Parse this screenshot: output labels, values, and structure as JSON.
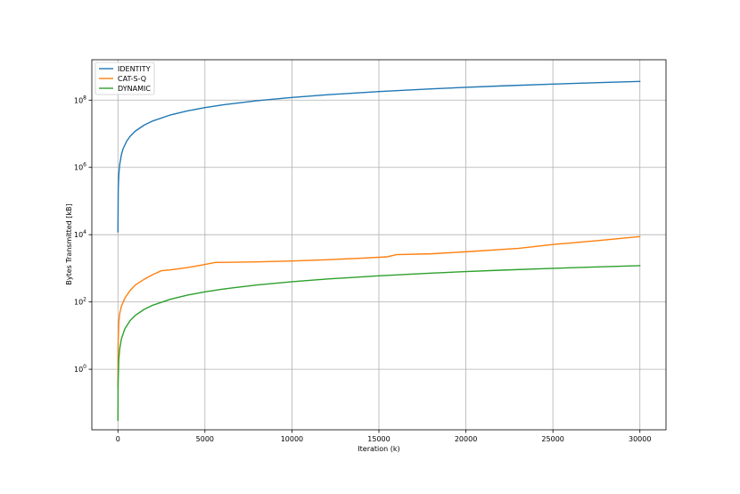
{
  "chart_data": {
    "type": "line",
    "title": "",
    "xlabel": "Iteration (k)",
    "ylabel": "Bytes Transmitted [kB]",
    "xlim": [
      -1500,
      31500
    ],
    "ylim_log10": [
      -1.8,
      9.2
    ],
    "yscale": "log",
    "grid": true,
    "legend_position": "top-left",
    "x_ticks": [
      0,
      5000,
      10000,
      15000,
      20000,
      25000,
      30000
    ],
    "x_tick_labels": [
      "0",
      "5000",
      "10000",
      "15000",
      "20000",
      "25000",
      "30000"
    ],
    "y_ticks_log10": [
      0,
      2,
      4,
      6,
      8
    ],
    "y_tick_labels": [
      {
        "base": "10",
        "exp": "0"
      },
      {
        "base": "10",
        "exp": "2"
      },
      {
        "base": "10",
        "exp": "4"
      },
      {
        "base": "10",
        "exp": "6"
      },
      {
        "base": "10",
        "exp": "8"
      }
    ],
    "series": [
      {
        "name": "IDENTITY",
        "color": "#1f77b4",
        "x": [
          0,
          20,
          50,
          100,
          200,
          300,
          500,
          700,
          1000,
          1500,
          2000,
          3000,
          4000,
          5000,
          6000,
          8000,
          10000,
          12000,
          15000,
          18000,
          20000,
          22000,
          25000,
          28000,
          30000
        ],
        "y": [
          12000.0,
          240000.0,
          600000.0,
          1200000.0,
          2400000.0,
          3600000.0,
          6000000.0,
          8400000.0,
          12000000.0,
          18000000.0,
          24000000.0,
          36000000.0,
          48000000.0,
          60000000.0,
          72000000.0,
          96000000.0,
          120000000.0,
          144000000.0,
          180000000.0,
          216000000.0,
          240000000.0,
          264000000.0,
          300000000.0,
          336000000.0,
          360000000.0
        ]
      },
      {
        "name": "CAT-S-Q",
        "color": "#ff7f0e",
        "x": [
          0,
          10,
          50,
          100,
          200,
          400,
          700,
          1000,
          1500,
          2000,
          2500,
          3000,
          4000,
          5000,
          5600,
          6000,
          8000,
          10000,
          12000,
          14000,
          15500,
          16000,
          18000,
          20000,
          23000,
          25000,
          28000,
          30000
        ],
        "y": [
          0.3,
          5,
          25,
          45,
          75,
          130,
          220,
          320,
          470,
          650,
          850,
          900,
          1050,
          1300,
          1500,
          1500,
          1550,
          1650,
          1800,
          2000,
          2200,
          2550,
          2700,
          3100,
          3900,
          5100,
          7000,
          8800
        ]
      },
      {
        "name": "DYNAMIC",
        "color": "#2ca02c",
        "x": [
          0,
          10,
          50,
          100,
          200,
          400,
          700,
          1000,
          1500,
          2000,
          3000,
          4000,
          5000,
          6000,
          8000,
          10000,
          12000,
          15000,
          18000,
          20000,
          22000,
          25000,
          28000,
          30000
        ],
        "y": [
          0.03,
          0.4,
          2,
          4,
          8,
          16,
          28,
          40,
          60,
          80,
          120,
          160,
          200,
          240,
          320,
          400,
          480,
          600,
          720,
          800,
          880,
          1000,
          1120,
          1200
        ]
      }
    ]
  }
}
